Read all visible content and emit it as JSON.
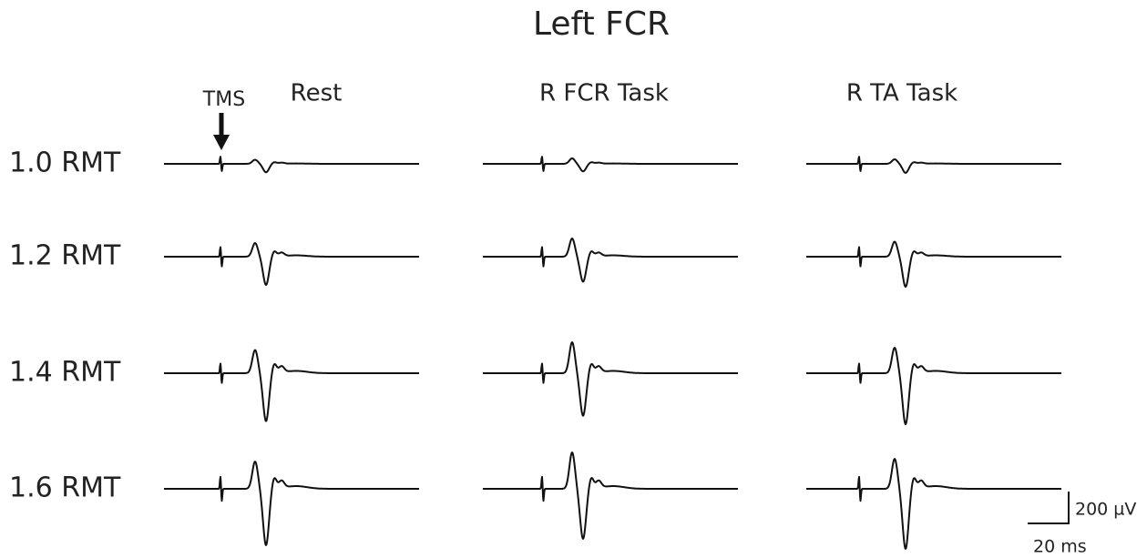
{
  "title": "Left FCR",
  "annotation": "TMS",
  "columns": [
    "Rest",
    "R FCR Task",
    "R TA Task"
  ],
  "rows": [
    "1.0 RMT",
    "1.2 RMT",
    "1.4 RMT",
    "1.6 RMT"
  ],
  "scale_bar": {
    "vertical": "200 µV",
    "horizontal": "20 ms"
  }
}
